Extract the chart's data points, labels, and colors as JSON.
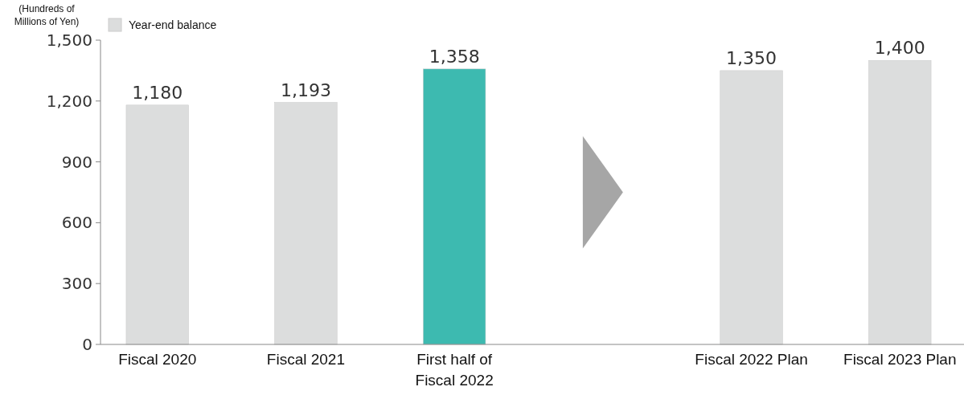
{
  "chart_data": {
    "type": "bar",
    "ylabel": "(Hundreds of Millions of Yen)",
    "categories": [
      "Fiscal 2020",
      "Fiscal 2021",
      "First half of Fiscal 2022",
      null,
      "Fiscal 2022 Plan",
      "Fiscal 2023 Plan"
    ],
    "series": [
      {
        "name": "Year-end balance",
        "color": "#dcdddd",
        "values": [
          1180,
          1193,
          1358,
          null,
          1350,
          1400
        ],
        "colors": [
          "#dcdddd",
          "#dcdddd",
          "#3dbab0",
          null,
          "#dcdddd",
          "#dcdddd"
        ],
        "value_labels": [
          "1,180",
          "1,193",
          "1,358",
          null,
          "1,350",
          "1,400"
        ]
      }
    ],
    "ylim": [
      0,
      1500
    ],
    "yticks": [
      0,
      300,
      600,
      900,
      {
        "value": 1200,
        "label": "1,200"
      },
      {
        "value": 1500,
        "label": "1,500"
      }
    ],
    "legend": "top left",
    "grid": false
  }
}
